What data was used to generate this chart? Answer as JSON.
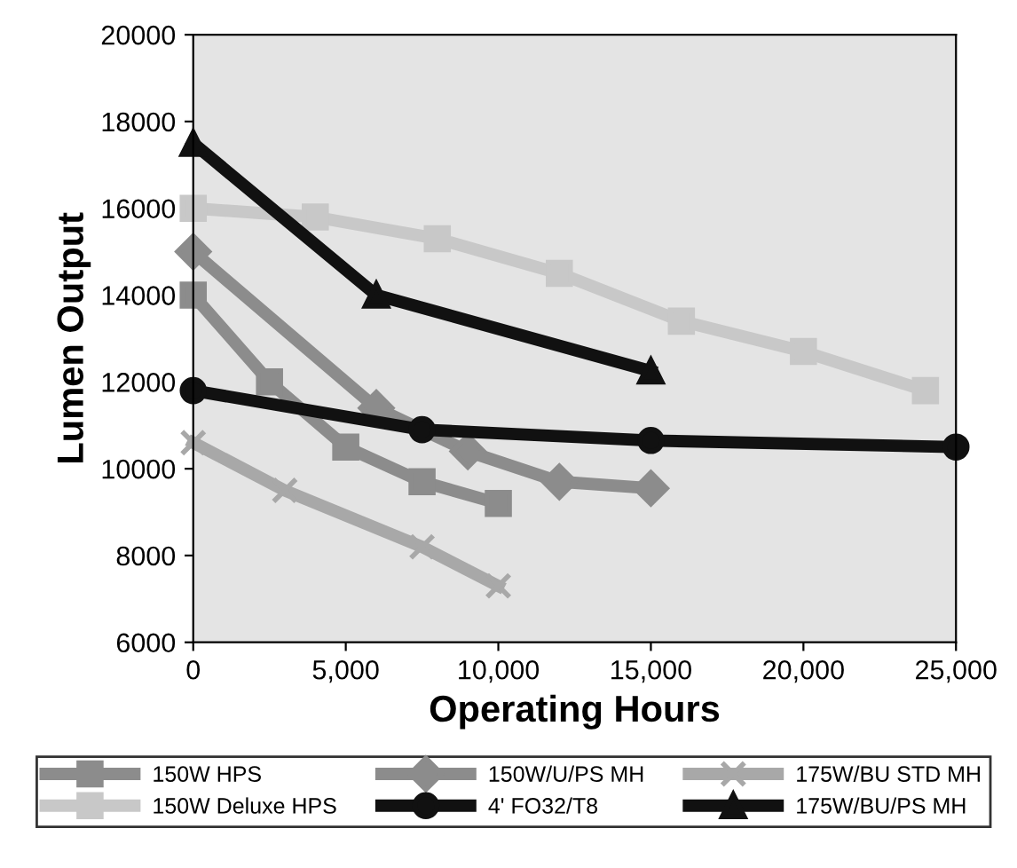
{
  "chart_data": {
    "type": "line",
    "xlabel": "Operating Hours",
    "ylabel": "Lumen Output",
    "xlim": [
      0,
      25000
    ],
    "xticks": [
      {
        "value": 0,
        "label": "0"
      },
      {
        "value": 5000,
        "label": "5,000"
      },
      {
        "value": 10000,
        "label": "10,000"
      },
      {
        "value": 15000,
        "label": "15,000"
      },
      {
        "value": 20000,
        "label": "20,000"
      },
      {
        "value": 25000,
        "label": "25,000"
      }
    ],
    "ylim": [
      6000,
      20000
    ],
    "yticks": [
      6000,
      8000,
      10000,
      12000,
      14000,
      16000,
      18000,
      20000
    ],
    "grid": false,
    "legend": "bottom",
    "series": [
      {
        "name": "150W HPS",
        "color": "#8c8c8c",
        "marker": "square",
        "x": [
          0,
          2500,
          5000,
          7500,
          10000
        ],
        "values": [
          14000,
          12000,
          10500,
          9700,
          9200
        ]
      },
      {
        "name": "150W Deluxe HPS",
        "color": "#c8c8c8",
        "marker": "square",
        "x": [
          0,
          4000,
          8000,
          12000,
          16000,
          20000,
          24000
        ],
        "values": [
          16000,
          15800,
          15300,
          14500,
          13400,
          12700,
          11800
        ]
      },
      {
        "name": "150W/U/PS MH",
        "color": "#8c8c8c",
        "marker": "diamond",
        "x": [
          0,
          6000,
          9000,
          12000,
          15000
        ],
        "values": [
          15000,
          11400,
          10400,
          9700,
          9550
        ]
      },
      {
        "name": "4' FO32/T8",
        "color": "#111111",
        "marker": "circle",
        "x": [
          0,
          7500,
          15000,
          25000
        ],
        "values": [
          11800,
          10900,
          10650,
          10500
        ]
      },
      {
        "name": "175W/BU STD MH",
        "color": "#a8a8a8",
        "marker": "cross",
        "x": [
          0,
          3000,
          7500,
          10000
        ],
        "values": [
          10600,
          9500,
          8200,
          7300
        ]
      },
      {
        "name": "175W/BU/PS MH",
        "color": "#111111",
        "marker": "triangle",
        "x": [
          0,
          6000,
          15000
        ],
        "values": [
          17500,
          14000,
          12250
        ]
      }
    ]
  }
}
